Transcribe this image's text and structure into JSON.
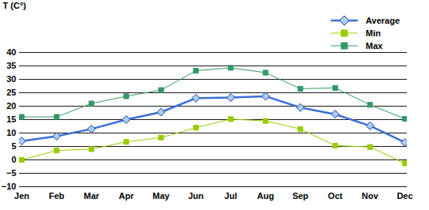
{
  "chart_data": {
    "type": "line",
    "ylabel": "T (C°)",
    "categories": [
      "Jen",
      "Feb",
      "Mar",
      "Apr",
      "May",
      "Jun",
      "Jul",
      "Aug",
      "Sep",
      "Oct",
      "Nov",
      "Dec"
    ],
    "series": [
      {
        "name": "Average",
        "color": "#3c6fd6",
        "marker": "diamond",
        "values": [
          7,
          8.8,
          11.5,
          15,
          17.8,
          23,
          23.2,
          23.7,
          19.5,
          17,
          12.7,
          6.5
        ]
      },
      {
        "name": "Min",
        "color": "#99cc00",
        "marker": "square",
        "values": [
          0,
          3.5,
          4,
          6.7,
          8.3,
          12,
          15.2,
          14.5,
          11.5,
          5.3,
          4.8,
          -1.3
        ]
      },
      {
        "name": "Max",
        "color": "#339966",
        "marker": "square",
        "values": [
          16,
          16,
          21,
          23.7,
          26,
          33.2,
          34.3,
          32.5,
          26.5,
          26.8,
          20.5,
          15.3
        ]
      }
    ],
    "ylim": [
      -10,
      40
    ],
    "yticks": [
      -10,
      -5,
      0,
      5,
      10,
      15,
      20,
      25,
      30,
      35,
      40
    ],
    "grid": true,
    "legend": "top-right"
  }
}
